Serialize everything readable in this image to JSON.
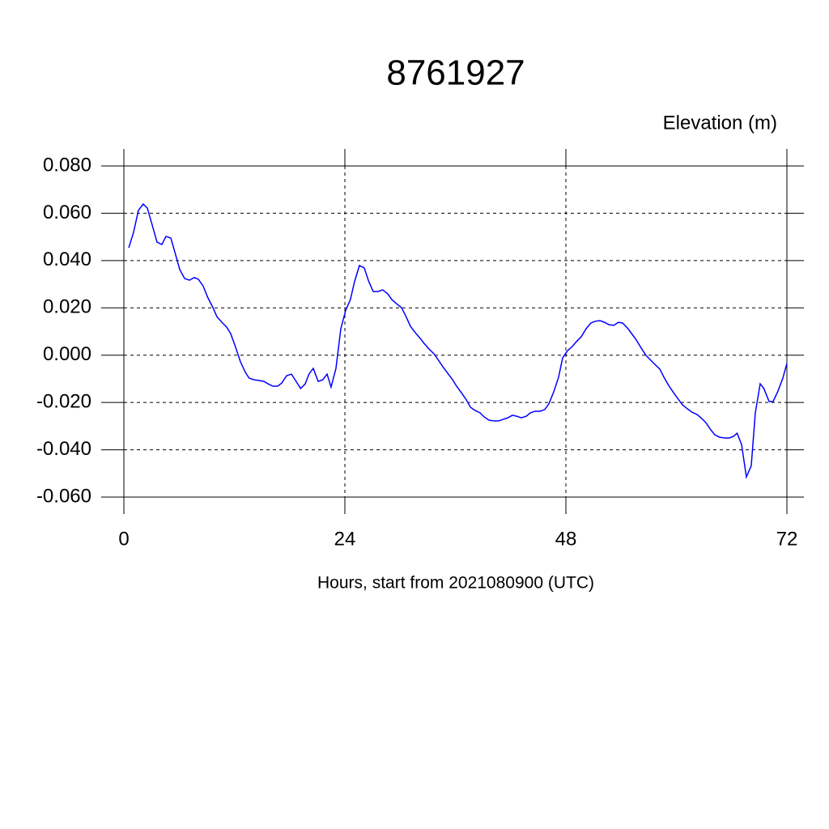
{
  "chart_data": {
    "type": "line",
    "title": "8761927",
    "subtitle": "Elevation (m)",
    "x_label": "Hours, start from 2021080900 (UTC)",
    "color": "#0000ff",
    "grid": true,
    "xlim": [
      0,
      72
    ],
    "xticks": [
      0,
      24,
      48,
      72
    ],
    "ylim": [
      -0.06,
      0.08
    ],
    "yticks": [
      {
        "value": -0.06,
        "label": "-0.060"
      },
      {
        "value": -0.04,
        "label": "-0.040"
      },
      {
        "value": -0.02,
        "label": "-0.020"
      },
      {
        "value": 0,
        "label": "0.000"
      },
      {
        "value": 0.02,
        "label": "0.020"
      },
      {
        "value": 0.04,
        "label": "0.040"
      },
      {
        "value": 0.06,
        "label": "0.060"
      },
      {
        "value": 0.08,
        "label": "0.080"
      }
    ],
    "x": [
      0.53,
      1.05,
      1.58,
      2.1,
      2.55,
      3.08,
      3.6,
      4.13,
      4.57,
      5.1,
      5.63,
      6.07,
      6.6,
      7.12,
      7.65,
      8.09,
      8.6,
      9.1,
      9.67,
      10.1,
      10.64,
      11.16,
      11.6,
      12.1,
      12.66,
      13.2,
      13.6,
      14.15,
      14.68,
      15.2,
      15.65,
      16.18,
      16.7,
      17.14,
      17.67,
      18.2,
      18.64,
      19.2,
      19.7,
      20.1,
      20.57,
      21.1,
      21.6,
      22.07,
      22.5,
      23.03,
      23.56,
      24.1,
      24.6,
      25.05,
      25.58,
      26.1,
      26.6,
      27.08,
      27.6,
      28.1,
      28.66,
      29.1,
      29.6,
      30.15,
      30.6,
      31.12,
      31.65,
      32.18,
      32.6,
      33.14,
      33.67,
      34.1,
      34.64,
      35.16,
      35.7,
      36.13,
      36.66,
      37.19,
      37.63,
      38.15,
      38.68,
      39.12,
      39.65,
      40.18,
      40.7,
      41.14,
      41.67,
      42.2,
      42.64,
      43.16,
      43.7,
      44.13,
      44.66,
      45.19,
      45.7,
      46.15,
      46.68,
      47.2,
      47.65,
      48.18,
      48.7,
      49.14,
      49.67,
      50.2,
      50.72,
      51.16,
      51.7,
      52.2,
      52.66,
      53.2,
      53.7,
      54.15,
      54.68,
      55.2,
      55.65,
      56.18,
      56.7,
      57.23,
      57.67,
      58.2,
      58.7,
      59.16,
      59.7,
      60.2,
      60.66,
      61.2,
      61.7,
      62.24,
      62.68,
      63.2,
      63.74,
      64.18,
      64.7,
      65.23,
      65.76,
      66.2,
      66.6,
      67.08,
      67.6,
      68.13,
      68.57,
      69.1,
      69.5,
      70.07,
      70.5,
      71.03,
      71.56,
      72
    ],
    "values": [
      0.0454,
      0.0519,
      0.0612,
      0.0639,
      0.0622,
      0.055,
      0.0478,
      0.0468,
      0.0502,
      0.0495,
      0.0423,
      0.0362,
      0.0324,
      0.0317,
      0.0328,
      0.0321,
      0.0293,
      0.0245,
      0.0201,
      0.0163,
      0.0139,
      0.0119,
      0.0091,
      0.0037,
      -0.0028,
      -0.0073,
      -0.0097,
      -0.0104,
      -0.0107,
      -0.0111,
      -0.0121,
      -0.0131,
      -0.0131,
      -0.0118,
      -0.0087,
      -0.008,
      -0.0107,
      -0.0141,
      -0.0121,
      -0.008,
      -0.0056,
      -0.0111,
      -0.0104,
      -0.008,
      -0.0135,
      -0.0056,
      0.0112,
      0.0191,
      0.0235,
      0.0311,
      0.0379,
      0.0369,
      0.0311,
      0.0269,
      0.0269,
      0.0276,
      0.0259,
      0.0235,
      0.0218,
      0.0201,
      0.0167,
      0.0122,
      0.0095,
      0.0071,
      0.005,
      0.0026,
      0.0006,
      -0.0018,
      -0.0049,
      -0.0076,
      -0.0104,
      -0.0131,
      -0.0159,
      -0.0189,
      -0.022,
      -0.0234,
      -0.0244,
      -0.0261,
      -0.0275,
      -0.0278,
      -0.0278,
      -0.0272,
      -0.0265,
      -0.0254,
      -0.0258,
      -0.0265,
      -0.0258,
      -0.0244,
      -0.0237,
      -0.0237,
      -0.023,
      -0.0206,
      -0.0155,
      -0.0094,
      -0.0011,
      0.0019,
      0.0037,
      0.0057,
      0.0078,
      0.0112,
      0.0136,
      0.0143,
      0.0146,
      0.0139,
      0.0129,
      0.0126,
      0.0139,
      0.0136,
      0.0115,
      0.0088,
      0.0064,
      0.003,
      -0.0001,
      -0.0022,
      -0.0039,
      -0.0059,
      -0.0097,
      -0.0128,
      -0.0159,
      -0.0186,
      -0.021,
      -0.0227,
      -0.0241,
      -0.0251,
      -0.0265,
      -0.0285,
      -0.0316,
      -0.0337,
      -0.0347,
      -0.035,
      -0.035,
      -0.0343,
      -0.033,
      -0.0378,
      -0.0515,
      -0.0467,
      -0.0244,
      -0.0121,
      -0.0141,
      -0.0196,
      -0.0196,
      -0.0152,
      -0.0097,
      -0.0035
    ]
  }
}
